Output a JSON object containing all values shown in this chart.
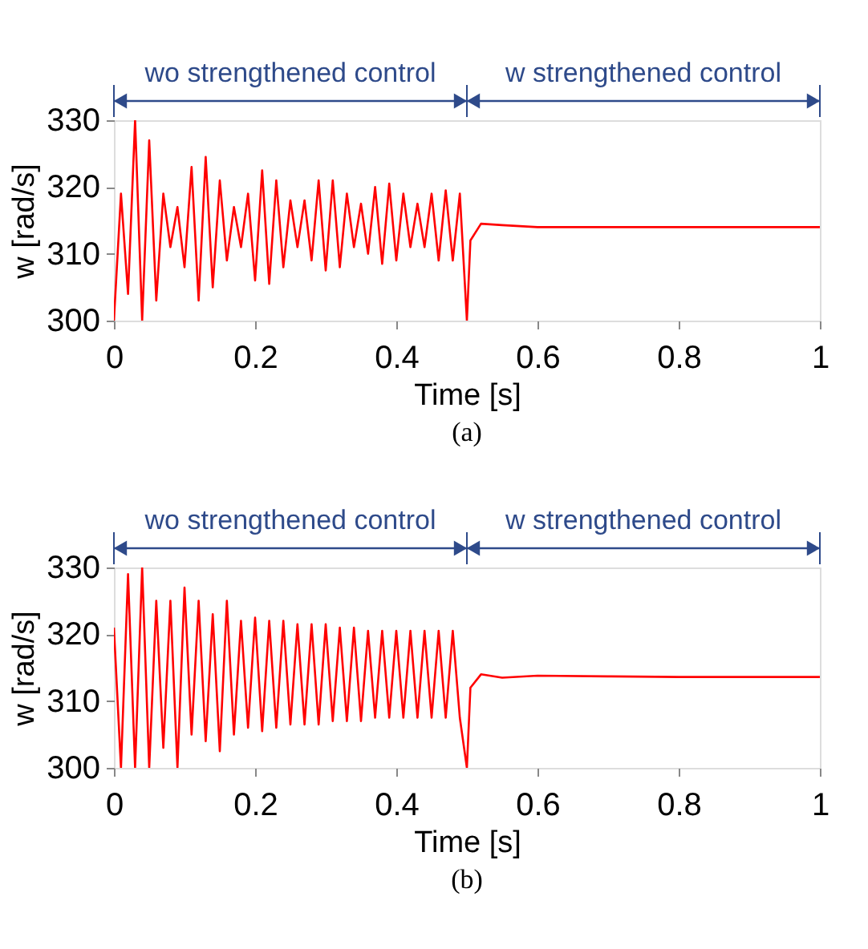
{
  "chart_data": [
    {
      "type": "line",
      "xlabel": "Time [s]",
      "ylabel": "w [rad/s]",
      "xlim": [
        0,
        1
      ],
      "ylim": [
        300,
        330
      ],
      "xticks": [
        0,
        0.2,
        0.4,
        0.6,
        0.8,
        1
      ],
      "yticks": [
        300,
        310,
        320,
        330
      ],
      "annotations": [
        "wo strengthened control",
        "w strengthened control",
        "(a)"
      ],
      "series": [
        {
          "color": "#ff0000",
          "x": [
            0,
            0.01,
            0.02,
            0.03,
            0.04,
            0.05,
            0.06,
            0.07,
            0.08,
            0.09,
            0.1,
            0.11,
            0.12,
            0.13,
            0.14,
            0.15,
            0.16,
            0.17,
            0.18,
            0.19,
            0.2,
            0.21,
            0.22,
            0.23,
            0.24,
            0.25,
            0.26,
            0.27,
            0.28,
            0.29,
            0.3,
            0.31,
            0.32,
            0.33,
            0.34,
            0.35,
            0.36,
            0.37,
            0.38,
            0.39,
            0.4,
            0.41,
            0.42,
            0.43,
            0.44,
            0.45,
            0.46,
            0.47,
            0.48,
            0.49,
            0.5,
            0.505,
            0.52,
            0.55,
            0.6,
            0.7,
            0.8,
            0.9,
            1
          ],
          "values": [
            300,
            319,
            304,
            330,
            300,
            327,
            303,
            319,
            311,
            317,
            308,
            323,
            303,
            324.5,
            305,
            321,
            309,
            317,
            311,
            319,
            306,
            322.5,
            305.5,
            321,
            308,
            318,
            311,
            318,
            309,
            321,
            307.5,
            321,
            308,
            319,
            311,
            317.5,
            310,
            320,
            308.5,
            320.5,
            309,
            319,
            311,
            317.5,
            311,
            319,
            309,
            319.5,
            309,
            319,
            300,
            312,
            314.5,
            314.3,
            314,
            314,
            314,
            314,
            314
          ]
        }
      ]
    },
    {
      "type": "line",
      "xlabel": "Time [s]",
      "ylabel": "w [rad/s]",
      "xlim": [
        0,
        1
      ],
      "ylim": [
        300,
        330
      ],
      "xticks": [
        0,
        0.2,
        0.4,
        0.6,
        0.8,
        1
      ],
      "yticks": [
        300,
        310,
        320,
        330
      ],
      "annotations": [
        "wo strengthened control",
        "w strengthened control",
        "(b)"
      ],
      "series": [
        {
          "color": "#ff0000",
          "x": [
            0,
            0.01,
            0.02,
            0.03,
            0.04,
            0.05,
            0.06,
            0.07,
            0.08,
            0.09,
            0.1,
            0.11,
            0.12,
            0.13,
            0.14,
            0.15,
            0.16,
            0.17,
            0.18,
            0.19,
            0.2,
            0.21,
            0.22,
            0.23,
            0.24,
            0.25,
            0.26,
            0.27,
            0.28,
            0.29,
            0.3,
            0.31,
            0.32,
            0.33,
            0.34,
            0.35,
            0.36,
            0.37,
            0.38,
            0.39,
            0.4,
            0.41,
            0.42,
            0.43,
            0.44,
            0.45,
            0.46,
            0.47,
            0.48,
            0.49,
            0.5,
            0.505,
            0.52,
            0.55,
            0.6,
            0.7,
            0.8,
            0.9,
            1
          ],
          "values": [
            321,
            300,
            329,
            300,
            330,
            300,
            325,
            303,
            325,
            300,
            327,
            305,
            325,
            304,
            323,
            302.5,
            325,
            305,
            322,
            306,
            322.5,
            305.5,
            322,
            306,
            322,
            306.5,
            321.5,
            306.5,
            321.5,
            306.5,
            321.5,
            307,
            321,
            307,
            321,
            307,
            320.5,
            307.5,
            320.5,
            307.5,
            320.5,
            307.5,
            320.5,
            307.5,
            320.5,
            307.5,
            320.5,
            307.5,
            320.5,
            307.5,
            300,
            312,
            314,
            313.5,
            313.8,
            313.7,
            313.6,
            313.6,
            313.6
          ]
        }
      ]
    }
  ]
}
